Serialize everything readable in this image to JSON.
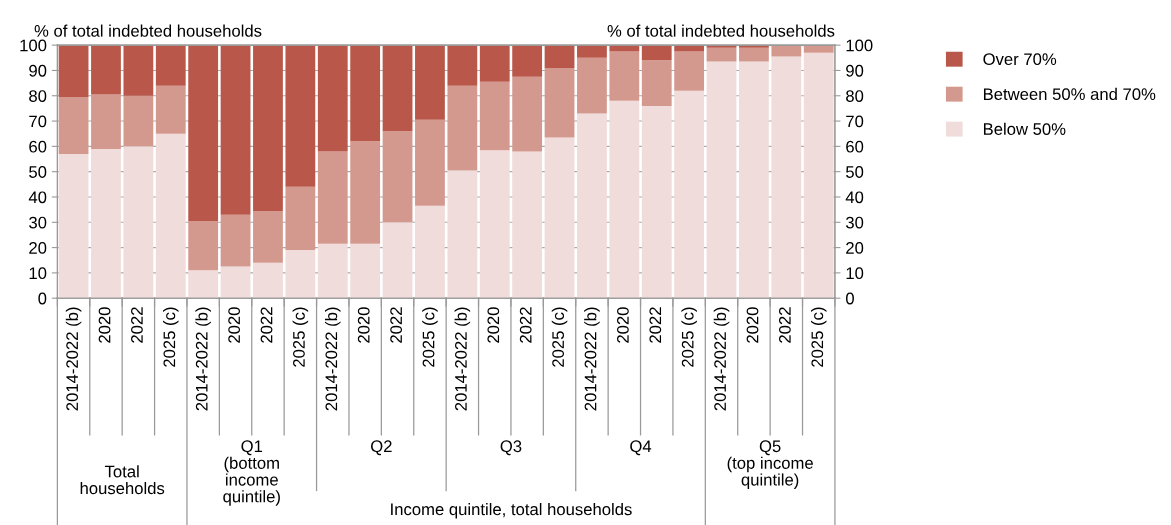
{
  "chart_data": {
    "type": "bar",
    "stacked": true,
    "ylabel": "% of total indebted households",
    "y2label": "% of total indebted households",
    "categories": [
      "2014-2022 (b)",
      "2020",
      "2022",
      "2025 (c)",
      "2014-2022 (b)",
      "2020",
      "2022",
      "2025 (c)",
      "2014-2022 (b)",
      "2020",
      "2022",
      "2025 (c)",
      "2014-2022 (b)",
      "2020",
      "2022",
      "2025 (c)",
      "2014-2022 (b)",
      "2020",
      "2022",
      "2025 (c)",
      "2014-2022 (b)",
      "2020",
      "2022",
      "2025 (c)"
    ],
    "series": [
      {
        "name": "Below 50%",
        "color": "#f0dcda",
        "values": [
          57,
          59,
          60,
          65,
          11,
          12.5,
          14,
          19,
          21.5,
          21.5,
          30,
          36.5,
          50.5,
          58.5,
          58,
          63.5,
          73,
          78,
          76,
          82,
          93.5,
          93.5,
          95.5,
          97
        ]
      },
      {
        "name": "Between 50% and 70%",
        "color": "#d4998e",
        "values": [
          22.5,
          21.5,
          20,
          19,
          19.5,
          20.5,
          20.5,
          25,
          36.5,
          40.5,
          36,
          34,
          33.5,
          27,
          29.5,
          27.5,
          22,
          19.5,
          18,
          15.5,
          5.5,
          5.5,
          4.5,
          3
        ]
      },
      {
        "name": "Over 70%",
        "color": "#b9574a",
        "values": [
          20.5,
          19.5,
          20,
          16,
          69.5,
          67,
          65.5,
          56,
          42,
          38,
          34,
          29.5,
          16,
          14.5,
          12.5,
          9,
          5,
          2.5,
          6,
          2.5,
          1,
          1,
          0,
          0
        ]
      }
    ],
    "ylim": [
      0,
      100
    ],
    "yticks": [
      0,
      10,
      20,
      30,
      40,
      50,
      60,
      70,
      80,
      90,
      100
    ],
    "y2lim": [
      0,
      100
    ],
    "y2ticks": [
      0,
      10,
      20,
      30,
      40,
      50,
      60,
      70,
      80,
      90,
      100
    ],
    "grid": "y",
    "legend": "top right",
    "annotations": [
      "Total\nhouseholds",
      "Q1\n(bottom\nincome\nquintile)",
      "Q2",
      "Q3",
      "Q4",
      "Q5\n(top income\nquintile)",
      "Income quintile, total households"
    ]
  }
}
